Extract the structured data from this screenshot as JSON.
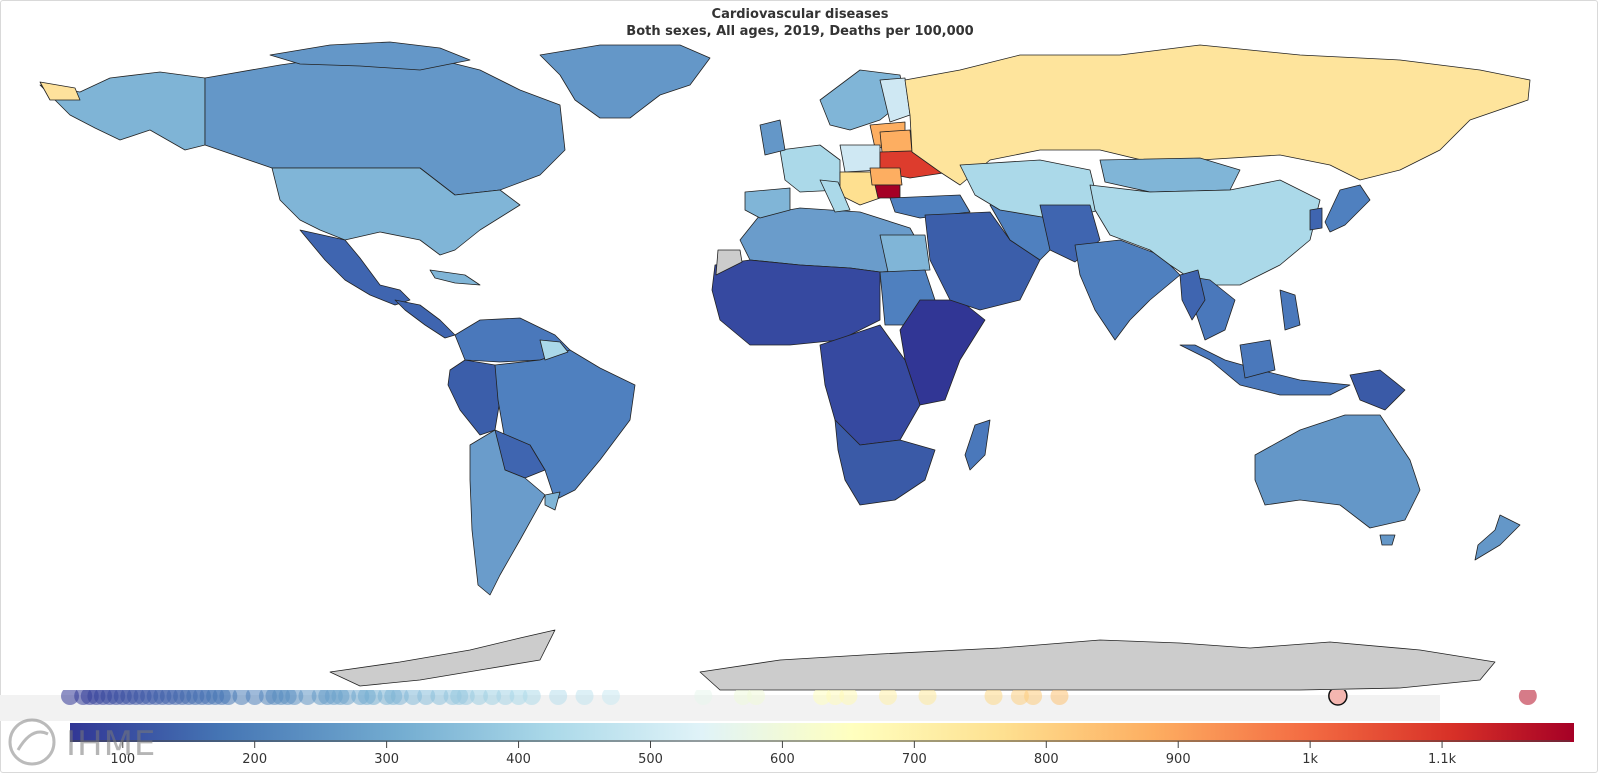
{
  "header": {
    "title": "Cardiovascular diseases",
    "subtitle": "Both sexes, All ages, 2019, Deaths per 100,000"
  },
  "logo": {
    "text": "IHME"
  },
  "legend": {
    "ticks": [
      "100",
      "200",
      "300",
      "400",
      "500",
      "600",
      "700",
      "800",
      "900",
      "1k",
      "1.1k"
    ],
    "tick_values": [
      100,
      200,
      300,
      400,
      500,
      600,
      700,
      800,
      900,
      1000,
      1100
    ],
    "range": [
      60,
      1200
    ],
    "colors": [
      "#313695",
      "#4575b4",
      "#74add1",
      "#abd9e9",
      "#e0f3f8",
      "#ffffbf",
      "#fee090",
      "#fdae61",
      "#f46d43",
      "#d73027",
      "#a50026"
    ]
  },
  "chart_data": {
    "type": "choropleth",
    "title": "Cardiovascular diseases",
    "subtitle": "Both sexes, All ages, 2019, Deaths per 100,000",
    "color_scale": {
      "min": 60,
      "max": 1200,
      "ticks": [
        100,
        200,
        300,
        400,
        500,
        600,
        700,
        800,
        900,
        1000,
        1100
      ]
    },
    "selected_value": 1021,
    "location_values": [
      60,
      70,
      75,
      80,
      85,
      90,
      95,
      100,
      105,
      110,
      115,
      120,
      125,
      130,
      135,
      140,
      145,
      150,
      155,
      160,
      165,
      170,
      175,
      180,
      190,
      200,
      210,
      215,
      220,
      225,
      230,
      240,
      250,
      255,
      260,
      265,
      270,
      280,
      285,
      290,
      300,
      305,
      310,
      320,
      330,
      340,
      350,
      355,
      360,
      370,
      380,
      390,
      400,
      410,
      430,
      450,
      470,
      540,
      570,
      580,
      630,
      640,
      650,
      680,
      710,
      760,
      780,
      790,
      810,
      1021,
      1165
    ]
  }
}
